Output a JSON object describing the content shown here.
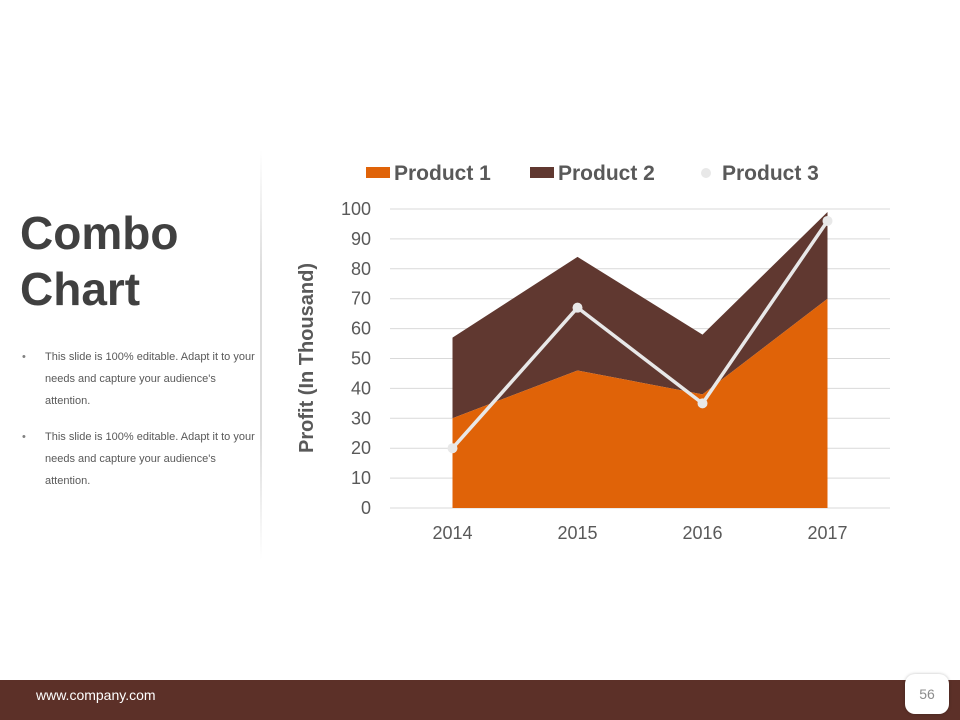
{
  "slide": {
    "title_line1": "Combo",
    "title_line2": "Chart",
    "bullets": [
      "This slide is 100% editable. Adapt it to your needs and capture your audience's attention.",
      "This slide is 100% editable. Adapt it to your needs and capture your audience's attention."
    ],
    "bullet_marker": "•"
  },
  "footer": {
    "url": "www.company.com",
    "page_number": "56"
  },
  "colors": {
    "product1": "#e06308",
    "product2": "#603830",
    "product3": "#e8e8e8",
    "footer": "#5c3028",
    "title": "#404040",
    "axis_text": "#595959"
  },
  "chart_data": {
    "type": "area",
    "title": "",
    "categories": [
      "2014",
      "2015",
      "2016",
      "2017"
    ],
    "series": [
      {
        "name": "Product 1",
        "type": "area",
        "values": [
          30,
          46,
          38,
          70
        ]
      },
      {
        "name": "Product 2",
        "type": "stacked-area",
        "values": [
          27,
          38,
          20,
          29
        ]
      },
      {
        "name": "Product 3",
        "type": "line",
        "values": [
          20,
          67,
          35,
          96
        ]
      }
    ],
    "xlabel": "",
    "ylabel": "Profit (In Thousand)",
    "ylim": [
      0,
      100
    ],
    "yticks": [
      0,
      10,
      20,
      30,
      40,
      50,
      60,
      70,
      80,
      90,
      100
    ],
    "grid": true,
    "legend": "top"
  }
}
